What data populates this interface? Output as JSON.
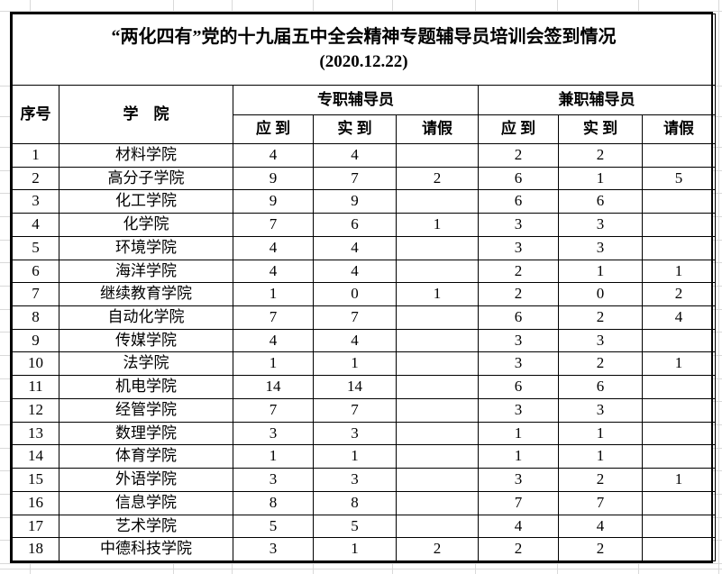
{
  "title": {
    "line1": "“两化四有”党的十九届五中全会精神专题辅导员培训会签到情况",
    "line2": "(2020.12.22)"
  },
  "table": {
    "headers": {
      "index": "序号",
      "college": "学　院",
      "fulltime_group": "专职辅导员",
      "parttime_group": "兼职辅导员",
      "expected": "应 到",
      "actual": "实 到",
      "leave": "请假"
    },
    "rows": [
      {
        "no": "1",
        "college": "材料学院",
        "ft_expected": "4",
        "ft_actual": "4",
        "ft_leave": "",
        "pt_expected": "2",
        "pt_actual": "2",
        "pt_leave": ""
      },
      {
        "no": "2",
        "college": "高分子学院",
        "ft_expected": "9",
        "ft_actual": "7",
        "ft_leave": "2",
        "pt_expected": "6",
        "pt_actual": "1",
        "pt_leave": "5"
      },
      {
        "no": "3",
        "college": "化工学院",
        "ft_expected": "9",
        "ft_actual": "9",
        "ft_leave": "",
        "pt_expected": "6",
        "pt_actual": "6",
        "pt_leave": ""
      },
      {
        "no": "4",
        "college": "化学院",
        "ft_expected": "7",
        "ft_actual": "6",
        "ft_leave": "1",
        "pt_expected": "3",
        "pt_actual": "3",
        "pt_leave": ""
      },
      {
        "no": "5",
        "college": "环境学院",
        "ft_expected": "4",
        "ft_actual": "4",
        "ft_leave": "",
        "pt_expected": "3",
        "pt_actual": "3",
        "pt_leave": ""
      },
      {
        "no": "6",
        "college": "海洋学院",
        "ft_expected": "4",
        "ft_actual": "4",
        "ft_leave": "",
        "pt_expected": "2",
        "pt_actual": "1",
        "pt_leave": "1"
      },
      {
        "no": "7",
        "college": "继续教育学院",
        "ft_expected": "1",
        "ft_actual": "0",
        "ft_leave": "1",
        "pt_expected": "2",
        "pt_actual": "0",
        "pt_leave": "2"
      },
      {
        "no": "8",
        "college": "自动化学院",
        "ft_expected": "7",
        "ft_actual": "7",
        "ft_leave": "",
        "pt_expected": "6",
        "pt_actual": "2",
        "pt_leave": "4"
      },
      {
        "no": "9",
        "college": "传媒学院",
        "ft_expected": "4",
        "ft_actual": "4",
        "ft_leave": "",
        "pt_expected": "3",
        "pt_actual": "3",
        "pt_leave": ""
      },
      {
        "no": "10",
        "college": "法学院",
        "ft_expected": "1",
        "ft_actual": "1",
        "ft_leave": "",
        "pt_expected": "3",
        "pt_actual": "2",
        "pt_leave": "1"
      },
      {
        "no": "11",
        "college": "机电学院",
        "ft_expected": "14",
        "ft_actual": "14",
        "ft_leave": "",
        "pt_expected": "6",
        "pt_actual": "6",
        "pt_leave": ""
      },
      {
        "no": "12",
        "college": "经管学院",
        "ft_expected": "7",
        "ft_actual": "7",
        "ft_leave": "",
        "pt_expected": "3",
        "pt_actual": "3",
        "pt_leave": ""
      },
      {
        "no": "13",
        "college": "数理学院",
        "ft_expected": "3",
        "ft_actual": "3",
        "ft_leave": "",
        "pt_expected": "1",
        "pt_actual": "1",
        "pt_leave": ""
      },
      {
        "no": "14",
        "college": "体育学院",
        "ft_expected": "1",
        "ft_actual": "1",
        "ft_leave": "",
        "pt_expected": "1",
        "pt_actual": "1",
        "pt_leave": ""
      },
      {
        "no": "15",
        "college": "外语学院",
        "ft_expected": "3",
        "ft_actual": "3",
        "ft_leave": "",
        "pt_expected": "3",
        "pt_actual": "2",
        "pt_leave": "1"
      },
      {
        "no": "16",
        "college": "信息学院",
        "ft_expected": "8",
        "ft_actual": "8",
        "ft_leave": "",
        "pt_expected": "7",
        "pt_actual": "7",
        "pt_leave": ""
      },
      {
        "no": "17",
        "college": "艺术学院",
        "ft_expected": "5",
        "ft_actual": "5",
        "ft_leave": "",
        "pt_expected": "4",
        "pt_actual": "4",
        "pt_leave": ""
      },
      {
        "no": "18",
        "college": "中德科技学院",
        "ft_expected": "3",
        "ft_actual": "1",
        "ft_leave": "2",
        "pt_expected": "2",
        "pt_actual": "2",
        "pt_leave": ""
      }
    ]
  },
  "colors": {
    "border": "#000000",
    "gridline": "#d9d9d9",
    "background": "#ffffff",
    "text": "#000000"
  }
}
